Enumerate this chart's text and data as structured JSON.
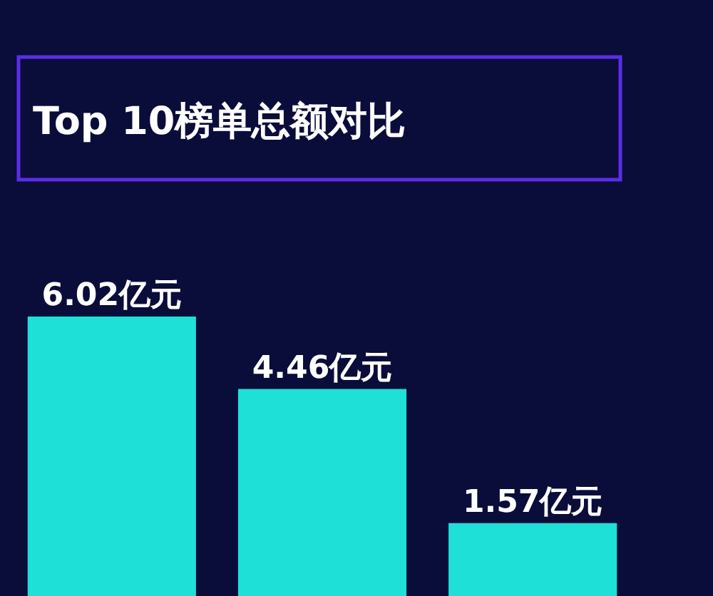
{
  "chart_data": {
    "type": "bar",
    "title": "Top 10榜单总额对比",
    "categories": [
      null,
      null,
      null
    ],
    "values": [
      6.02,
      4.46,
      1.57
    ],
    "value_labels": [
      "6.02亿元",
      "4.46亿元",
      "1.57亿元"
    ],
    "color": "#1ee0d6"
  }
}
